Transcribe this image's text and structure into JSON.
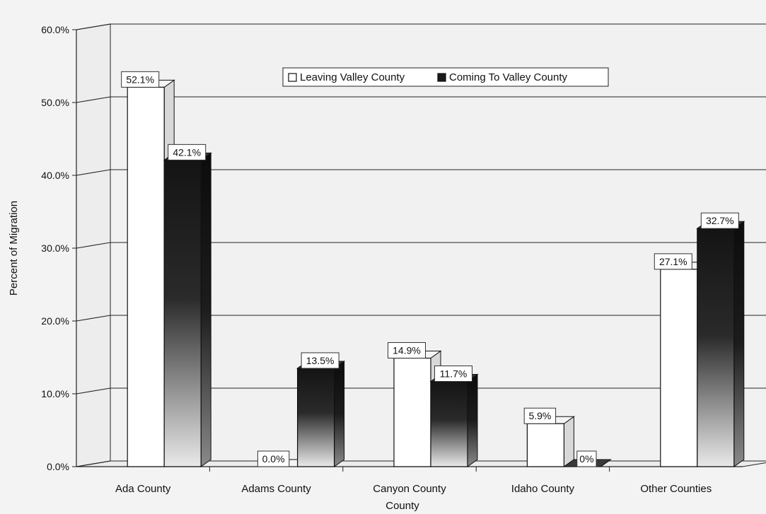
{
  "chart_data": {
    "type": "bar",
    "categories": [
      "Ada County",
      "Adams County",
      "Canyon County",
      "Idaho County",
      "Other Counties"
    ],
    "series": [
      {
        "name": "Leaving Valley County",
        "values": [
          52.1,
          0.0,
          14.9,
          5.9,
          27.1
        ],
        "labels": [
          "52.1%",
          "0.0%",
          "14.9%",
          "5.9%",
          "27.1%"
        ]
      },
      {
        "name": "Coming To Valley County",
        "values": [
          42.1,
          13.5,
          11.7,
          0,
          32.7
        ],
        "labels": [
          "42.1%",
          "13.5%",
          "11.7%",
          "0%",
          "32.7%"
        ]
      }
    ],
    "xlabel": "County",
    "ylabel": "Percent of Migration",
    "ylim": [
      0,
      60
    ],
    "yticks": [
      "0.0%",
      "10.0%",
      "20.0%",
      "30.0%",
      "40.0%",
      "50.0%",
      "60.0%"
    ],
    "grid": true,
    "legend_position": "top-center",
    "style": "3d-column",
    "colors": {
      "leaving": "#ffffff",
      "coming_top": "#1a1a1a",
      "coming_bottom": "#e6e6e6",
      "background": "#f3f3f3"
    }
  }
}
